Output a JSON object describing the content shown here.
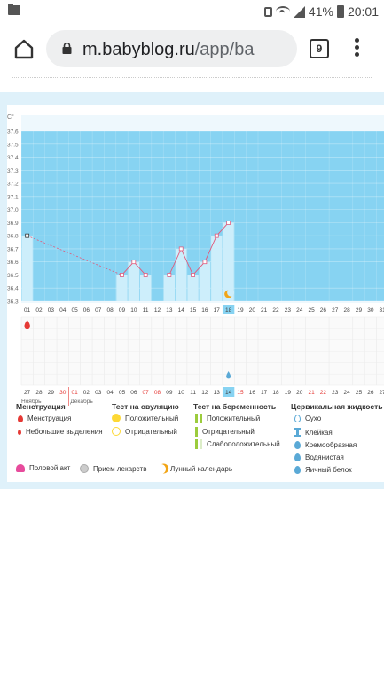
{
  "status_bar": {
    "battery": "41%",
    "time": "20:01"
  },
  "browser": {
    "url_host": "m.babyblog.ru",
    "url_path": "/app/ba",
    "tab_count": "9"
  },
  "chart_data": {
    "type": "line",
    "ylabel": "С°",
    "ylim": [
      36.3,
      37.6
    ],
    "y_ticks": [
      "37.6",
      "37.5",
      "37.4",
      "37.3",
      "37.2",
      "37.1",
      "37.0",
      "36.9",
      "36.8",
      "36.7",
      "36.6",
      "36.5",
      "36.4",
      "36.3"
    ],
    "days": [
      "01",
      "02",
      "03",
      "04",
      "05",
      "06",
      "07",
      "08",
      "09",
      "10",
      "11",
      "12",
      "13",
      "14",
      "15",
      "16",
      "17",
      "18",
      "19",
      "20",
      "21",
      "22",
      "23",
      "24",
      "25",
      "26",
      "27",
      "28",
      "29",
      "30",
      "31"
    ],
    "current_day": "18",
    "temps": [
      36.8,
      null,
      null,
      null,
      null,
      null,
      null,
      null,
      36.5,
      36.6,
      36.5,
      null,
      36.5,
      36.7,
      36.5,
      36.6,
      36.8,
      36.9,
      null,
      null,
      null,
      null,
      null,
      null,
      null,
      null,
      null,
      null,
      null,
      null,
      null
    ],
    "dashed_from": 1,
    "dashed_to": 9,
    "menstruation_day": "01",
    "lunar_day": "18",
    "cervical_fluid_day": "14",
    "calendar_dates": [
      {
        "d": "27",
        "red": false
      },
      {
        "d": "28",
        "red": false
      },
      {
        "d": "29",
        "red": false
      },
      {
        "d": "30",
        "red": true
      },
      {
        "d": "01",
        "red": true
      },
      {
        "d": "02",
        "red": false
      },
      {
        "d": "03",
        "red": false
      },
      {
        "d": "04",
        "red": false
      },
      {
        "d": "05",
        "red": false
      },
      {
        "d": "06",
        "red": false
      },
      {
        "d": "07",
        "red": true
      },
      {
        "d": "08",
        "red": true
      },
      {
        "d": "09",
        "red": false
      },
      {
        "d": "10",
        "red": false
      },
      {
        "d": "11",
        "red": false
      },
      {
        "d": "12",
        "red": false
      },
      {
        "d": "13",
        "red": false
      },
      {
        "d": "14",
        "red": false
      },
      {
        "d": "15",
        "red": true
      },
      {
        "d": "16",
        "red": false
      },
      {
        "d": "17",
        "red": false
      },
      {
        "d": "18",
        "red": false
      },
      {
        "d": "19",
        "red": false
      },
      {
        "d": "20",
        "red": false
      },
      {
        "d": "21",
        "red": true
      },
      {
        "d": "22",
        "red": true
      },
      {
        "d": "23",
        "red": false
      },
      {
        "d": "24",
        "red": false
      },
      {
        "d": "25",
        "red": false
      },
      {
        "d": "26",
        "red": false
      },
      {
        "d": "27",
        "red": false
      }
    ],
    "current_calendar_date": "14",
    "month_prev": "Ноябрь",
    "month_next": "Декабрь",
    "colors": {
      "fill": "#87d3f2",
      "bar": "#cdeefb",
      "line": "#e05a7c",
      "grid_bg": "#fafafa",
      "current": "#87d3f2"
    }
  },
  "legend": {
    "menstruation": {
      "title": "Менструация",
      "items": [
        "Менструация",
        "Небольшие выделения"
      ]
    },
    "ovulation": {
      "title": "Тест на овуляцию",
      "items": [
        "Положительный",
        "Отрицательный"
      ]
    },
    "pregnancy": {
      "title": "Тест на беременность",
      "items": [
        "Положительный",
        "Отрицательный",
        "Слабоположительный"
      ]
    },
    "cervical": {
      "title": "Цервикальная жидкость",
      "items": [
        "Сухо",
        "Клейкая",
        "Кремообразная",
        "Водянистая",
        "Яичный белок"
      ]
    },
    "bottom": [
      "Половой акт",
      "Прием лекарств",
      "Лунный календарь"
    ]
  }
}
